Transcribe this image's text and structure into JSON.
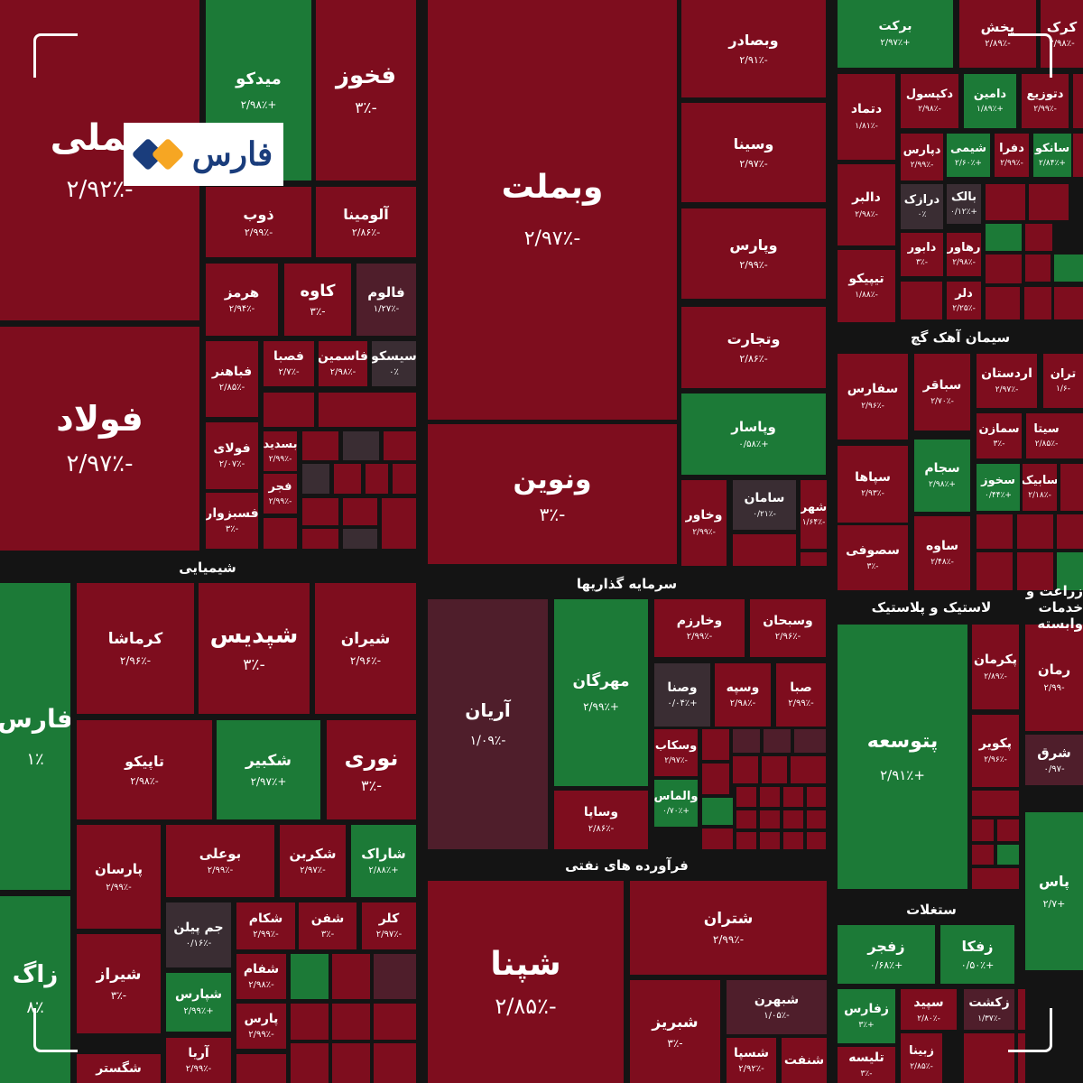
{
  "logo": {
    "text": "فارس",
    "colors": [
      "#f6a623",
      "#1a3d7c"
    ]
  },
  "colors": {
    "down": "#7e0d1e",
    "up": "#1c7a37",
    "flat": "#3a2d33",
    "slight_down": "#4f1e2b",
    "background": "#141414"
  },
  "chart_data": {
    "type": "treemap",
    "sectors": [
      {
        "label": "شیمیایی"
      },
      {
        "label": "سرمایه گذاریها"
      },
      {
        "label": "فرآورده های نفتی"
      },
      {
        "label": "سیمان آهک گچ"
      },
      {
        "label": "لاستیک و پلاستیک"
      },
      {
        "label": "زراعت و خدمات وابسته"
      },
      {
        "label": "ستغلات"
      }
    ],
    "tiles": [
      {
        "name": "فملی",
        "change": "-۲/۹۲٪",
        "value": -2.92
      },
      {
        "name": "فولاد",
        "change": "-۲/۹۷٪",
        "value": -2.97
      },
      {
        "name": "میدکو",
        "change": "+۲/۹۸٪",
        "value": 2.98
      },
      {
        "name": "فخوز",
        "change": "-۳٪",
        "value": -3.0
      },
      {
        "name": "ذوب",
        "change": "-۲/۹۹٪",
        "value": -2.99
      },
      {
        "name": "آلومینا",
        "change": "-۲/۸۶٪",
        "value": -2.86
      },
      {
        "name": "هرمز",
        "change": "-۲/۹۴٪",
        "value": -2.94
      },
      {
        "name": "کاوه",
        "change": "-۳٪",
        "value": -3.0
      },
      {
        "name": "فالوم",
        "change": "-۱/۲۷٪",
        "value": -1.27
      },
      {
        "name": "فباهنر",
        "change": "-۲/۸۵٪",
        "value": -2.85
      },
      {
        "name": "فصبا",
        "change": "-۲/۷٪",
        "value": -2.7
      },
      {
        "name": "فاسمین",
        "change": "-۲/۹۸٪",
        "value": -2.98
      },
      {
        "name": "سیسکو",
        "change": "۰٪",
        "value": 0.0
      },
      {
        "name": "فولای",
        "change": "-۲/۰۷٪",
        "value": -2.07
      },
      {
        "name": "بسدید",
        "change": "-۲/۹۹٪",
        "value": -2.99
      },
      {
        "name": "فجر",
        "change": "-۲/۹۹٪",
        "value": -2.99
      },
      {
        "name": "فسبزوار",
        "change": "-۳٪",
        "value": -3.0
      },
      {
        "name": "وبملت",
        "change": "-۲/۹۷٪",
        "value": -2.97
      },
      {
        "name": "ونوین",
        "change": "-۳٪",
        "value": -3.0
      },
      {
        "name": "وبصادر",
        "change": "-۲/۹۱٪",
        "value": -2.91
      },
      {
        "name": "وسینا",
        "change": "-۲/۹۷٪",
        "value": -2.97
      },
      {
        "name": "وپارس",
        "change": "-۲/۹۹٪",
        "value": -2.99
      },
      {
        "name": "وتجارت",
        "change": "-۲/۸۶٪",
        "value": -2.86
      },
      {
        "name": "وپاسار",
        "change": "+۰/۵۸٪",
        "value": 0.58
      },
      {
        "name": "وخاور",
        "change": "-۲/۹۹٪",
        "value": -2.99
      },
      {
        "name": "سامان",
        "change": "-۰/۲۱٪",
        "value": -0.21
      },
      {
        "name": "شهر",
        "change": "-۱/۶۴٪",
        "value": -1.64
      },
      {
        "name": "برکت",
        "change": "+۲/۹۷٪",
        "value": 2.97
      },
      {
        "name": "پخش",
        "change": "-۲/۸۹٪",
        "value": -2.89
      },
      {
        "name": "کرک",
        "change": "-۲/۹۸٪",
        "value": -2.98
      },
      {
        "name": "دتماد",
        "change": "-۱/۸۱٪",
        "value": -1.81
      },
      {
        "name": "دکپسول",
        "change": "-۲/۹۸٪",
        "value": -2.98
      },
      {
        "name": "دامین",
        "change": "+۱/۸۹٪",
        "value": 1.89
      },
      {
        "name": "دتوزیع",
        "change": "-۲/۹۹٪",
        "value": -2.99
      },
      {
        "name": "دپارس",
        "change": "-۲/۹۹٪",
        "value": -2.99
      },
      {
        "name": "شیمی",
        "change": "+۲/۶۰٪",
        "value": 2.6
      },
      {
        "name": "دفرا",
        "change": "-۲/۹۹٪",
        "value": -2.99
      },
      {
        "name": "سانکو",
        "change": "+۲/۸۴٪",
        "value": 2.84
      },
      {
        "name": "دالبر",
        "change": "-۲/۹۸٪",
        "value": -2.98
      },
      {
        "name": "درازک",
        "change": "۰٪",
        "value": 0.0
      },
      {
        "name": "بالک",
        "change": "+۰/۱۲٪",
        "value": 0.12
      },
      {
        "name": "دابور",
        "change": "-۳٪",
        "value": -3.0
      },
      {
        "name": "رهاور",
        "change": "-۲/۹۸٪",
        "value": -2.98
      },
      {
        "name": "تیپیکو",
        "change": "-۱/۸۸٪",
        "value": -1.88
      },
      {
        "name": "دلر",
        "change": "-۲/۲۵٪",
        "value": -2.25
      },
      {
        "name": "سفارس",
        "change": "-۲/۹۶٪",
        "value": -2.96
      },
      {
        "name": "سباقر",
        "change": "-۲/۷۰٪",
        "value": -2.7
      },
      {
        "name": "اردستان",
        "change": "-۲/۹۷٪",
        "value": -2.97
      },
      {
        "name": "تران",
        "change": "-۱/۶",
        "value": -1.6
      },
      {
        "name": "سمازن",
        "change": "-۳٪",
        "value": -3.0
      },
      {
        "name": "سیتا",
        "change": "-۲/۸۵٪",
        "value": -2.85
      },
      {
        "name": "سپاها",
        "change": "-۲/۹۳٪",
        "value": -2.93
      },
      {
        "name": "سجام",
        "change": "+۲/۹۸٪",
        "value": 2.98
      },
      {
        "name": "سخوز",
        "change": "+۰/۴۴٪",
        "value": 0.44
      },
      {
        "name": "سابیک",
        "change": "-۲/۱۸٪",
        "value": -2.18
      },
      {
        "name": "سصوفی",
        "change": "-۳٪",
        "value": -3.0
      },
      {
        "name": "ساوه",
        "change": "-۲/۴۸٪",
        "value": -2.48
      },
      {
        "name": "فارس",
        "change": "۱٪",
        "value": 1.0
      },
      {
        "name": "کرماشا",
        "change": "-۲/۹۶٪",
        "value": -2.96
      },
      {
        "name": "شپدیس",
        "change": "-۳٪",
        "value": -3.0
      },
      {
        "name": "شیران",
        "change": "-۲/۹۶٪",
        "value": -2.96
      },
      {
        "name": "تاپیکو",
        "change": "-۲/۹۸٪",
        "value": -2.98
      },
      {
        "name": "شکبیر",
        "change": "+۲/۹۷٪",
        "value": 2.97
      },
      {
        "name": "نوری",
        "change": "-۳٪",
        "value": -3.0
      },
      {
        "name": "پارسان",
        "change": "-۲/۹۹٪",
        "value": -2.99
      },
      {
        "name": "بوعلی",
        "change": "-۲/۹۹٪",
        "value": -2.99
      },
      {
        "name": "شکربن",
        "change": "-۲/۹۷٪",
        "value": -2.97
      },
      {
        "name": "شاراک",
        "change": "+۲/۸۸٪",
        "value": 2.88
      },
      {
        "name": "جم پیلن",
        "change": "-۰/۱۶٪",
        "value": -0.16
      },
      {
        "name": "شکام",
        "change": "-۲/۹۹٪",
        "value": -2.99
      },
      {
        "name": "شفن",
        "change": "-۳٪",
        "value": -3.0
      },
      {
        "name": "کلر",
        "change": "-۲/۹۷٪",
        "value": -2.97
      },
      {
        "name": "شیراز",
        "change": "-۳٪",
        "value": -3.0
      },
      {
        "name": "شپارس",
        "change": "+۲/۹۹٪",
        "value": 2.99
      },
      {
        "name": "شفام",
        "change": "-۲/۹۸٪",
        "value": -2.98
      },
      {
        "name": "پارس",
        "change": "-۲/۹۹٪",
        "value": -2.99
      },
      {
        "name": "آریا",
        "change": "-۲/۹۹٪",
        "value": -2.99
      },
      {
        "name": "شگستر",
        "change": "",
        "value": null
      },
      {
        "name": "زاگ",
        "change": "۸٪",
        "value": 8.0
      },
      {
        "name": "آریان",
        "change": "-۱/۰۹٪",
        "value": -1.09
      },
      {
        "name": "مهرگان",
        "change": "+۲/۹۹٪",
        "value": 2.99
      },
      {
        "name": "وخارزم",
        "change": "-۲/۹۹٪",
        "value": -2.99
      },
      {
        "name": "وسبحان",
        "change": "-۲/۹۶٪",
        "value": -2.96
      },
      {
        "name": "وصنا",
        "change": "+۰/۰۴٪",
        "value": 0.04
      },
      {
        "name": "وسپه",
        "change": "-۲/۹۸٪",
        "value": -2.98
      },
      {
        "name": "صبا",
        "change": "-۲/۹۹٪",
        "value": -2.99
      },
      {
        "name": "وسکاب",
        "change": "-۲/۹۷٪",
        "value": -2.97
      },
      {
        "name": "والماس",
        "change": "+۰/۷۰٪",
        "value": 0.7
      },
      {
        "name": "وساپا",
        "change": "-۲/۸۶٪",
        "value": -2.86
      },
      {
        "name": "شپنا",
        "change": "-۲/۸۵٪",
        "value": -2.85
      },
      {
        "name": "شتران",
        "change": "-۲/۹۹٪",
        "value": -2.99
      },
      {
        "name": "شبریز",
        "change": "-۳٪",
        "value": -3.0
      },
      {
        "name": "شبهرن",
        "change": "-۱/۰۵٪",
        "value": -1.05
      },
      {
        "name": "شسپا",
        "change": "-۲/۹۲٪",
        "value": -2.92
      },
      {
        "name": "شنفت",
        "change": "",
        "value": null
      },
      {
        "name": "پکرمان",
        "change": "-۲/۸۹٪",
        "value": -2.89
      },
      {
        "name": "پکویر",
        "change": "-۲/۹۶٪",
        "value": -2.96
      },
      {
        "name": "پتوسعه",
        "change": "+۲/۹۱٪",
        "value": 2.91
      },
      {
        "name": "رمان",
        "change": "-۲/۹۹",
        "value": -2.99
      },
      {
        "name": "شرق",
        "change": "-۰/۹۷",
        "value": -0.97
      },
      {
        "name": "پاس",
        "change": "+۲/۷",
        "value": 2.7
      },
      {
        "name": "زفجر",
        "change": "+۰/۶۸٪",
        "value": 0.68
      },
      {
        "name": "زفکا",
        "change": "+۰/۵۰٪",
        "value": 0.5
      },
      {
        "name": "زفارس",
        "change": "+۳٪",
        "value": 3.0
      },
      {
        "name": "سپید",
        "change": "-۲/۸۰٪",
        "value": -2.8
      },
      {
        "name": "زکشت",
        "change": "-۱/۳۷٪",
        "value": -1.37
      },
      {
        "name": "تلیسه",
        "change": "-۳٪",
        "value": -3.0
      },
      {
        "name": "زبینا",
        "change": "-۲/۸۵٪",
        "value": -2.85
      }
    ]
  }
}
